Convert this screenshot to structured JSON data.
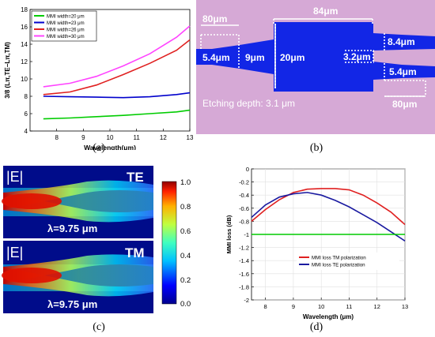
{
  "captions": {
    "a": "(a)",
    "b": "(b)",
    "c": "(c)",
    "d": "(d)"
  },
  "panel_b": {
    "labels": {
      "top_left_width": "80μm",
      "top_width": "84μm",
      "input_height": "5.4μm",
      "taper_height": "9μm",
      "body_height": "20μm",
      "out_gap": "3.2μm",
      "out_upper_height": "8.4μm",
      "out_lower_height": "5.4μm",
      "bottom_right_width": "80μm",
      "etching": "Etching depth: 3.1 μm"
    },
    "colors": {
      "background": "#d6a9d6",
      "waveguide": "#1226e6"
    }
  },
  "panel_c": {
    "field_symbol": "|E|",
    "top_label": "TE",
    "bottom_label": "TM",
    "top_wavelength": "λ=9.75 μm",
    "bottom_wavelength": "λ=9.75 μm",
    "colorbar_ticks": [
      "1.0",
      "0.8",
      "0.6",
      "0.4",
      "0.2",
      "0.0"
    ]
  },
  "chart_data": [
    {
      "id": "a",
      "type": "line",
      "xlabel": "Wavelength(μm)",
      "ylabel": "3/8 (Lπ,TE−Lπ,TM)",
      "xlim": [
        7,
        13
      ],
      "ylim": [
        4,
        18
      ],
      "xticks": [
        8,
        9,
        10,
        11,
        12,
        13
      ],
      "yticks": [
        4,
        6,
        8,
        10,
        12,
        14,
        16,
        18
      ],
      "legend_position": "top-left",
      "series": [
        {
          "name": "MMI width=20 μm",
          "color": "#00cc00",
          "x": [
            7.5,
            8.5,
            9.5,
            10.5,
            11.5,
            12.5,
            13
          ],
          "y": [
            5.4,
            5.5,
            5.65,
            5.8,
            6.0,
            6.2,
            6.4
          ]
        },
        {
          "name": "MMI width=23 μm",
          "color": "#0000cc",
          "x": [
            7.5,
            8.5,
            9.5,
            10.5,
            11.5,
            12.5,
            13
          ],
          "y": [
            8.0,
            7.95,
            7.9,
            7.85,
            7.95,
            8.2,
            8.4
          ]
        },
        {
          "name": "MMI width=26 μm",
          "color": "#e02020",
          "x": [
            7.5,
            8.5,
            9.5,
            10.5,
            11.5,
            12.5,
            13
          ],
          "y": [
            8.2,
            8.5,
            9.3,
            10.5,
            11.8,
            13.3,
            14.5
          ]
        },
        {
          "name": "MMI width=30 μm",
          "color": "#ff44ff",
          "x": [
            7.5,
            8.5,
            9.5,
            10.5,
            11.5,
            12.5,
            13
          ],
          "y": [
            9.1,
            9.5,
            10.3,
            11.5,
            12.9,
            14.8,
            16.1
          ]
        }
      ]
    },
    {
      "id": "d",
      "type": "line",
      "xlabel": "Wavelength (μm)",
      "ylabel": "MMI loss (dB)",
      "xlim": [
        7.5,
        13
      ],
      "ylim": [
        -2,
        0
      ],
      "xticks": [
        8,
        9,
        10,
        11,
        12,
        13
      ],
      "yticks": [
        0,
        -0.2,
        -0.4,
        -0.6,
        -0.8,
        -1,
        -1.2,
        -1.4,
        -1.6,
        -1.8,
        -2
      ],
      "ytick_labels": [
        "0",
        "-0.2",
        "-0.4",
        "-0.6",
        "-0.8",
        "-1",
        "-1.2",
        "-1.4",
        "-1.6",
        "-1.8",
        "-2"
      ],
      "legend_position": "bottom-right",
      "series": [
        {
          "name": "MMI loss TM polarization",
          "color": "#e02020",
          "x": [
            7.5,
            8,
            8.5,
            9,
            9.5,
            10,
            10.5,
            11,
            11.5,
            12,
            12.5,
            13
          ],
          "y": [
            -0.8,
            -0.62,
            -0.47,
            -0.36,
            -0.31,
            -0.3,
            -0.3,
            -0.32,
            -0.4,
            -0.52,
            -0.66,
            -0.85
          ]
        },
        {
          "name": "MMI loss TE polarization",
          "color": "#1a1aa0",
          "x": [
            7.5,
            8,
            8.5,
            9,
            9.5,
            10,
            10.5,
            11,
            11.5,
            12,
            12.5,
            13
          ],
          "y": [
            -0.74,
            -0.55,
            -0.43,
            -0.38,
            -0.36,
            -0.4,
            -0.48,
            -0.58,
            -0.7,
            -0.82,
            -0.96,
            -1.1
          ]
        },
        {
          "name": "",
          "color": "#00cc00",
          "x": [
            7.5,
            13
          ],
          "y": [
            -1,
            -1
          ]
        }
      ]
    }
  ]
}
